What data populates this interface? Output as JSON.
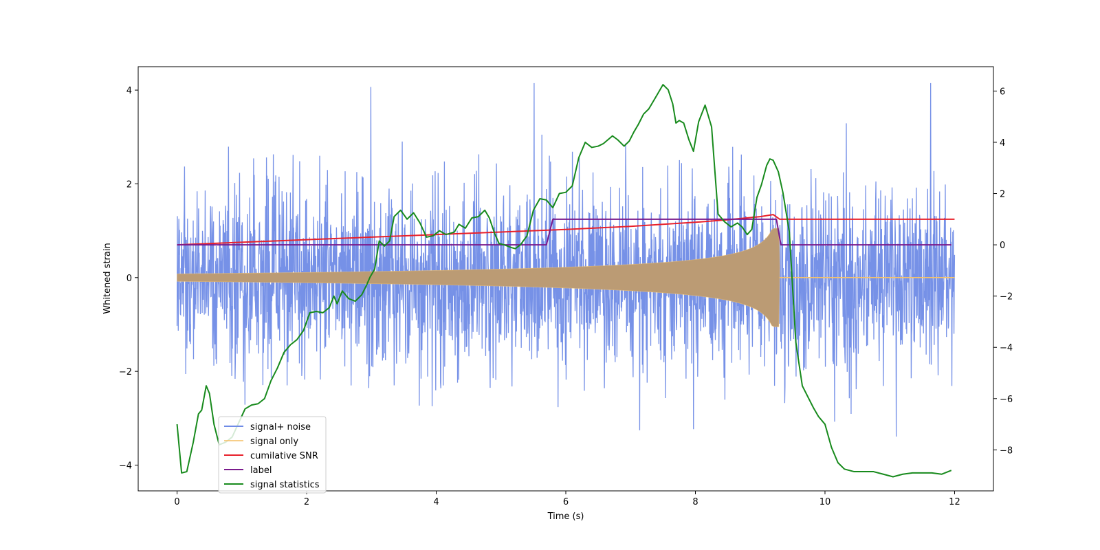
{
  "chart_data": {
    "type": "line",
    "xlabel": "Time (s)",
    "ylabel": "Whitened strain",
    "y2label": "",
    "xlim": [
      -0.6,
      12.6
    ],
    "ylim": [
      -4.55,
      4.5
    ],
    "y2lim": [
      -9.6,
      6.95
    ],
    "xticks": [
      0,
      2,
      4,
      6,
      8,
      10,
      12
    ],
    "yticks": [
      -4,
      -2,
      0,
      2,
      4
    ],
    "y2ticks": [
      -8,
      -6,
      -4,
      -2,
      0,
      2,
      4,
      6
    ],
    "xtick_labels": [
      "0",
      "2",
      "4",
      "6",
      "8",
      "10",
      "12"
    ],
    "ytick_labels": [
      "−4",
      "−2",
      "0",
      "2",
      "4"
    ],
    "y2tick_labels": [
      "−8",
      "−6",
      "−4",
      "−2",
      "0",
      "2",
      "4",
      "6"
    ],
    "legend_position": "lower-left",
    "series": [
      {
        "name": "signal+ noise",
        "axis": "left",
        "style": "noise",
        "color": "#6f8be6",
        "x_range": [
          0,
          12
        ],
        "std": 0.95,
        "typical_extremes": [
          -3.2,
          3.6
        ]
      },
      {
        "name": "signal only",
        "axis": "left",
        "style": "chirp",
        "color": "#f5c26b",
        "x_range": [
          0,
          9.3
        ],
        "amplitude_start": 0.08,
        "amplitude_end": 1.05,
        "after_merger_value": 0
      },
      {
        "name": "cumilative SNR",
        "axis": "right",
        "style": "line",
        "color": "#e8202a",
        "x": [
          0,
          1,
          2,
          3,
          4,
          5,
          6,
          7,
          7.5,
          8,
          8.5,
          9,
          9.2,
          9.3,
          10,
          11,
          12
        ],
        "y": [
          0,
          0.1,
          0.2,
          0.3,
          0.4,
          0.5,
          0.6,
          0.72,
          0.8,
          0.88,
          0.98,
          1.1,
          1.18,
          1.0,
          1.0,
          1.0,
          1.0
        ]
      },
      {
        "name": "label",
        "axis": "right",
        "style": "line",
        "color": "#7a1a8c",
        "x": [
          0,
          5.7,
          5.8,
          9.25,
          9.32,
          11.95
        ],
        "y": [
          0,
          0,
          1,
          1,
          0,
          0
        ]
      },
      {
        "name": "signal statistics",
        "axis": "right",
        "style": "line",
        "color": "#178a1c",
        "x": [
          0,
          0.07,
          0.15,
          0.25,
          0.33,
          0.38,
          0.45,
          0.5,
          0.57,
          0.65,
          0.75,
          0.85,
          0.95,
          1.05,
          1.15,
          1.25,
          1.35,
          1.45,
          1.55,
          1.65,
          1.75,
          1.85,
          1.95,
          2.05,
          2.15,
          2.25,
          2.35,
          2.42,
          2.47,
          2.55,
          2.65,
          2.75,
          2.85,
          2.92,
          2.98,
          3.05,
          3.12,
          3.2,
          3.28,
          3.35,
          3.45,
          3.55,
          3.65,
          3.75,
          3.85,
          3.95,
          4.05,
          4.15,
          4.22,
          4.28,
          4.35,
          4.45,
          4.55,
          4.65,
          4.75,
          4.82,
          4.9,
          4.97,
          5.05,
          5.15,
          5.22,
          5.3,
          5.4,
          5.5,
          5.6,
          5.7,
          5.8,
          5.9,
          6.0,
          6.1,
          6.2,
          6.3,
          6.4,
          6.5,
          6.58,
          6.65,
          6.72,
          6.8,
          6.9,
          6.98,
          7.05,
          7.12,
          7.2,
          7.28,
          7.35,
          7.42,
          7.5,
          7.58,
          7.65,
          7.7,
          7.75,
          7.82,
          7.9,
          7.97,
          8.05,
          8.15,
          8.25,
          8.35,
          8.45,
          8.55,
          8.65,
          8.72,
          8.8,
          8.87,
          8.95,
          9.02,
          9.1,
          9.15,
          9.2,
          9.28,
          9.35,
          9.45,
          9.55,
          9.65,
          9.75,
          9.82,
          9.9,
          10.0,
          10.1,
          10.2,
          10.3,
          10.45,
          10.6,
          10.75,
          10.9,
          11.05,
          11.2,
          11.35,
          11.5,
          11.65,
          11.8,
          11.95
        ],
        "y": [
          -7.0,
          -8.9,
          -8.85,
          -7.7,
          -6.6,
          -6.45,
          -5.5,
          -5.8,
          -7.0,
          -7.8,
          -7.7,
          -7.5,
          -6.95,
          -6.4,
          -6.25,
          -6.2,
          -6.0,
          -5.3,
          -4.8,
          -4.2,
          -3.9,
          -3.7,
          -3.35,
          -2.65,
          -2.6,
          -2.65,
          -2.45,
          -2.0,
          -2.3,
          -1.8,
          -2.1,
          -2.2,
          -1.95,
          -1.6,
          -1.25,
          -0.95,
          0.15,
          -0.05,
          0.15,
          1.1,
          1.35,
          1.0,
          1.25,
          0.85,
          0.3,
          0.35,
          0.55,
          0.4,
          0.45,
          0.5,
          0.8,
          0.65,
          1.05,
          1.1,
          1.35,
          1.05,
          0.45,
          0.05,
          0.0,
          -0.1,
          -0.15,
          0.0,
          0.35,
          1.35,
          1.8,
          1.75,
          1.45,
          2.0,
          2.05,
          2.3,
          3.4,
          4.0,
          3.8,
          3.85,
          3.95,
          4.1,
          4.25,
          4.1,
          3.85,
          4.05,
          4.4,
          4.7,
          5.1,
          5.3,
          5.6,
          5.9,
          6.25,
          6.05,
          5.5,
          4.75,
          4.85,
          4.75,
          4.1,
          3.65,
          4.8,
          5.45,
          4.6,
          1.2,
          0.9,
          0.7,
          0.85,
          0.7,
          0.4,
          0.6,
          1.85,
          2.35,
          3.1,
          3.35,
          3.3,
          2.85,
          2.05,
          0.5,
          -3.8,
          -5.5,
          -6.0,
          -6.35,
          -6.7,
          -7.0,
          -7.9,
          -8.5,
          -8.75,
          -8.85,
          -8.85,
          -8.85,
          -8.95,
          -9.05,
          -8.95,
          -8.9,
          -8.9,
          -8.9,
          -8.95,
          -8.8
        ]
      }
    ]
  }
}
